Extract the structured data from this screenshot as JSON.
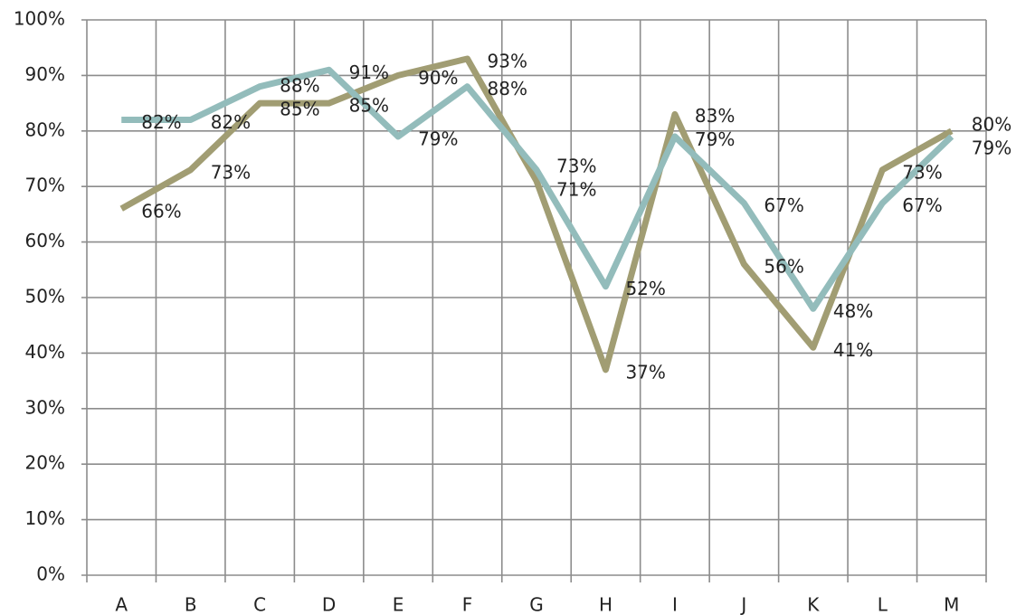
{
  "chart_data": {
    "type": "line",
    "categories": [
      "A",
      "B",
      "C",
      "D",
      "E",
      "F",
      "G",
      "H",
      "I",
      "J",
      "K",
      "L",
      "M"
    ],
    "series": [
      {
        "color": "#a19d73",
        "values": [
          66,
          73,
          85,
          85,
          90,
          93,
          71,
          37,
          83,
          56,
          41,
          73,
          80
        ],
        "value_labels": [
          "66%",
          "73%",
          "85%",
          "85%",
          "90%",
          "93%",
          "71%",
          "37%",
          "83%",
          "56%",
          "41%",
          "73%",
          "80%"
        ]
      },
      {
        "color": "#93bcbb",
        "values": [
          82,
          82,
          88,
          91,
          79,
          88,
          73,
          52,
          79,
          67,
          48,
          67,
          79
        ],
        "value_labels": [
          "82%",
          "82%",
          "88%",
          "91%",
          "79%",
          "88%",
          "73%",
          "52%",
          "79%",
          "67%",
          "48%",
          "67%",
          "79%"
        ]
      }
    ],
    "ylim": [
      0,
      100
    ],
    "yticks": [
      {
        "value": 0,
        "label": "0%"
      },
      {
        "value": 10,
        "label": "10%"
      },
      {
        "value": 20,
        "label": "20%"
      },
      {
        "value": 30,
        "label": "30%"
      },
      {
        "value": 40,
        "label": "40%"
      },
      {
        "value": 50,
        "label": "50%"
      },
      {
        "value": 60,
        "label": "60%"
      },
      {
        "value": 70,
        "label": "70%"
      },
      {
        "value": 80,
        "label": "80%"
      },
      {
        "value": 90,
        "label": "90%"
      },
      {
        "value": 100,
        "label": "100%"
      }
    ],
    "grid": true
  }
}
